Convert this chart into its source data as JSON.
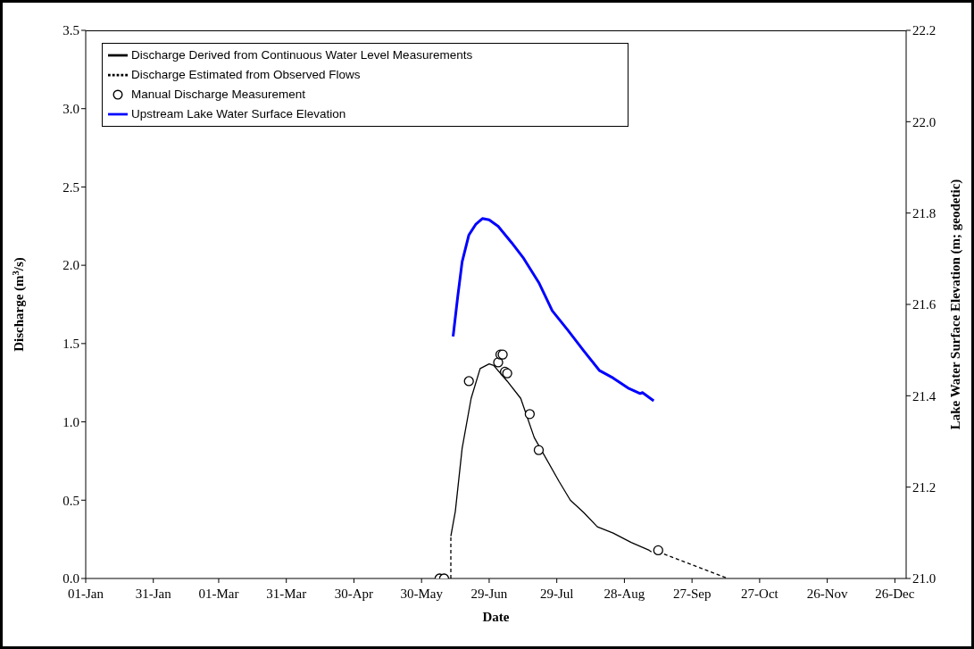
{
  "chart_data": {
    "type": "line",
    "xlabel": "Date",
    "ylabel": "Discharge (m$^{3}$/s)",
    "y2label": "Lake Water Surface Elevation (m; geodetic)",
    "xlim": [
      "--01-01",
      "--12-31"
    ],
    "xticks": [
      {
        "value": "--01-01",
        "label": "01-Jan"
      },
      {
        "value": "--01-31",
        "label": "31-Jan"
      },
      {
        "value": "--03-01",
        "label": "01-Mar"
      },
      {
        "value": "--03-31",
        "label": "31-Mar"
      },
      {
        "value": "--04-30",
        "label": "30-Apr"
      },
      {
        "value": "--05-30",
        "label": "30-May"
      },
      {
        "value": "--06-29",
        "label": "29-Jun"
      },
      {
        "value": "--07-29",
        "label": "29-Jul"
      },
      {
        "value": "--08-28",
        "label": "28-Aug"
      },
      {
        "value": "--09-27",
        "label": "27-Sep"
      },
      {
        "value": "--10-27",
        "label": "27-Oct"
      },
      {
        "value": "--11-26",
        "label": "26-Nov"
      },
      {
        "value": "--12-26",
        "label": "26-Dec"
      }
    ],
    "ylim": [
      0,
      3.5
    ],
    "yticks": [
      {
        "value": 0,
        "label": "0.0"
      },
      0.5,
      {
        "value": 1,
        "label": "1.0"
      },
      1.5,
      {
        "value": 2,
        "label": "2.0"
      },
      2.5,
      {
        "value": 3,
        "label": "3.0"
      },
      3.5
    ],
    "y2lim": [
      21,
      22.2
    ],
    "y2ticks": [
      {
        "value": 21,
        "label": "21.0"
      },
      21.2,
      21.4,
      21.6,
      21.8,
      {
        "value": 22,
        "label": "22.0"
      },
      22.2
    ],
    "legend": "top left",
    "series": [
      {
        "name": "Discharge Derived from Continuous Water Level Measurements",
        "color": "#000000",
        "line_style": "solid",
        "marker": "none",
        "x": [
          "--06-12",
          "--06-14",
          "--06-17",
          "--06-21",
          "--06-25",
          "--06-29",
          "--07-01",
          "--07-07",
          "--07-13",
          "--07-19",
          "--07-30",
          "--08-04",
          "--08-10",
          "--08-16",
          "--08-23",
          "--08-31",
          "--09-08",
          "--09-09"
        ],
        "values": [
          0.27,
          0.43,
          0.83,
          1.15,
          1.34,
          1.37,
          1.36,
          1.26,
          1.15,
          0.9,
          0.62,
          0.5,
          0.42,
          0.33,
          0.29,
          0.23,
          0.18,
          0.17
        ]
      },
      {
        "name": "Discharge Estimated from Observed Flows",
        "color": "#000000",
        "line_style": "dashed",
        "marker": "none",
        "x": [
          "--06-12",
          "--06-12",
          "--07-19",
          "--09-12",
          "--10-13"
        ],
        "values": [
          0,
          0.27,
          null,
          0.17,
          0
        ]
      },
      {
        "name": "Manual Discharge Measurement",
        "type": "scatter",
        "color": "#000000",
        "marker": "circle",
        "x": [
          "--06-07",
          "--06-09",
          "--06-20",
          "--07-03",
          "--07-04",
          "--07-05",
          "--07-06",
          "--07-07",
          "--07-17",
          "--07-21",
          "--09-12"
        ],
        "values": [
          0,
          0,
          1.26,
          1.38,
          1.43,
          1.43,
          1.32,
          1.31,
          1.05,
          0.82,
          0.18
        ]
      },
      {
        "name": "Upstream Lake Water Surface Elevation",
        "axis": "y2",
        "color": "#0000ff",
        "line_style": "solid",
        "marker": "none",
        "x": [
          "--06-13",
          "--06-15",
          "--06-17",
          "--06-20",
          "--06-23",
          "--06-26",
          "--06-29",
          "--07-03",
          "--07-09",
          "--07-14",
          "--07-21",
          "--07-27",
          "--08-03",
          "--08-10",
          "--08-17",
          "--08-23",
          "--08-30",
          "--09-04",
          "--09-05",
          "--09-10"
        ],
        "values": [
          21.53,
          21.615,
          21.693,
          21.752,
          21.775,
          21.788,
          21.785,
          21.771,
          21.735,
          21.703,
          21.648,
          21.586,
          21.543,
          21.498,
          21.455,
          21.439,
          21.416,
          21.405,
          21.407,
          21.389
        ]
      }
    ]
  }
}
